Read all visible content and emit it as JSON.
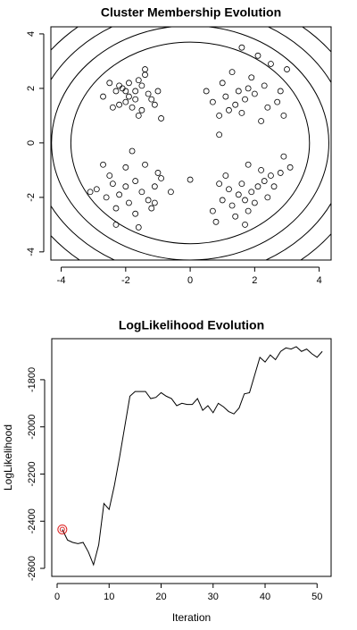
{
  "chart_data": [
    {
      "type": "scatter",
      "title": "Cluster Membership Evolution",
      "x": [
        -2.3,
        -2.1,
        -1.9,
        -1.7,
        -1.5,
        -1.4,
        -1.6,
        -1.9,
        -2.2,
        -2.4,
        -2.0,
        -1.8,
        -1.5,
        -1.2,
        -1.0,
        -1.1,
        -0.9,
        -1.6,
        -2.5,
        -2.7,
        -1.3,
        -1.7,
        -2.0,
        -1.4,
        -2.2,
        1.5,
        1.8,
        1.7,
        2.0,
        1.4,
        1.2,
        2.3,
        2.5,
        2.1,
        1.6,
        1.0,
        0.7,
        0.5,
        0.9,
        2.7,
        2.9,
        3.0,
        2.4,
        1.9,
        1.1,
        2.2,
        1.3,
        0.9,
        2.8,
        1.6,
        -2.4,
        -2.2,
        -2.0,
        -1.7,
        -1.5,
        -1.3,
        -1.1,
        -0.9,
        -0.6,
        -1.9,
        -2.3,
        -2.6,
        -2.9,
        -3.1,
        -2.0,
        -1.8,
        -1.4,
        -1.2,
        -1.6,
        -2.3,
        -2.5,
        -1.0,
        -1.7,
        -2.7,
        -1.1,
        1.5,
        1.7,
        1.9,
        2.1,
        1.6,
        1.3,
        1.8,
        2.3,
        2.5,
        2.8,
        3.1,
        2.9,
        1.2,
        1.0,
        0.9,
        0.7,
        0.8,
        1.7,
        2.0,
        1.4,
        2.2,
        1.8,
        2.4,
        1.1,
        2.6,
        0.0
      ],
      "y": [
        1.9,
        2.0,
        1.7,
        1.9,
        2.1,
        2.5,
        2.3,
        2.2,
        1.4,
        1.3,
        1.5,
        1.3,
        1.2,
        1.6,
        1.9,
        1.4,
        0.9,
        1.0,
        2.2,
        1.7,
        1.8,
        1.6,
        1.9,
        2.7,
        2.1,
        1.9,
        2.0,
        1.6,
        1.8,
        1.4,
        1.2,
        2.1,
        2.9,
        3.2,
        3.5,
        2.2,
        1.5,
        1.9,
        1.0,
        1.5,
        1.0,
        2.7,
        1.3,
        2.4,
        1.7,
        0.8,
        2.6,
        0.3,
        1.9,
        1.1,
        -1.5,
        -1.9,
        -1.6,
        -1.4,
        -1.8,
        -2.1,
        -1.6,
        -1.3,
        -1.8,
        -2.2,
        -2.4,
        -2.0,
        -1.7,
        -1.8,
        -0.9,
        -0.3,
        -0.8,
        -2.4,
        -3.1,
        -3.0,
        -1.2,
        -1.1,
        -2.6,
        -0.8,
        -2.2,
        -1.9,
        -2.1,
        -1.8,
        -1.6,
        -1.5,
        -2.3,
        -2.5,
        -1.4,
        -1.2,
        -1.1,
        -0.9,
        -0.5,
        -1.7,
        -2.1,
        -1.5,
        -2.5,
        -2.9,
        -3.0,
        -2.2,
        -2.7,
        -1.0,
        -0.8,
        -2.0,
        -1.2,
        -1.6,
        -1.35
      ],
      "contour_radii": [
        3.7,
        4.3,
        4.9,
        5.5
      ],
      "xlim": [
        -4.32,
        4.37
      ],
      "ylim": [
        -4.3,
        4.26
      ],
      "xticks": [
        -4,
        -2,
        0,
        2,
        4
      ],
      "yticks": [
        -4,
        -2,
        0,
        2,
        4
      ],
      "color": "#000000"
    },
    {
      "type": "line",
      "title": "LogLikelihood Evolution",
      "x_label": "Iteration",
      "y_label": "LogLikelihood",
      "x": [
        1,
        2,
        3,
        4,
        5,
        6,
        7,
        8,
        9,
        10,
        11,
        12,
        13,
        14,
        15,
        16,
        17,
        18,
        19,
        20,
        21,
        22,
        23,
        24,
        25,
        26,
        27,
        28,
        29,
        30,
        31,
        32,
        33,
        34,
        35,
        36,
        37,
        38,
        39,
        40,
        41,
        42,
        43,
        44,
        45,
        46,
        47,
        48,
        49,
        50,
        51
      ],
      "values": [
        -2435,
        -2480,
        -2490,
        -2495,
        -2490,
        -2530,
        -2585,
        -2500,
        -2325,
        -2350,
        -2250,
        -2130,
        -2000,
        -1870,
        -1850,
        -1850,
        -1850,
        -1880,
        -1875,
        -1855,
        -1870,
        -1880,
        -1910,
        -1900,
        -1905,
        -1905,
        -1880,
        -1930,
        -1910,
        -1940,
        -1900,
        -1915,
        -1935,
        -1945,
        -1920,
        -1860,
        -1855,
        -1780,
        -1705,
        -1725,
        -1695,
        -1715,
        -1680,
        -1665,
        -1670,
        -1660,
        -1680,
        -1670,
        -1690,
        -1705,
        -1680
      ],
      "highlight_index": 0,
      "highlight_color": "#dd2222",
      "color": "#000000",
      "xlim": [
        -1.03,
        52.7
      ],
      "ylim": [
        -2634,
        -1626
      ],
      "xticks": [
        0,
        10,
        20,
        30,
        40,
        50
      ],
      "yticks": [
        -2600,
        -2400,
        -2200,
        -2000,
        -1800
      ]
    }
  ]
}
